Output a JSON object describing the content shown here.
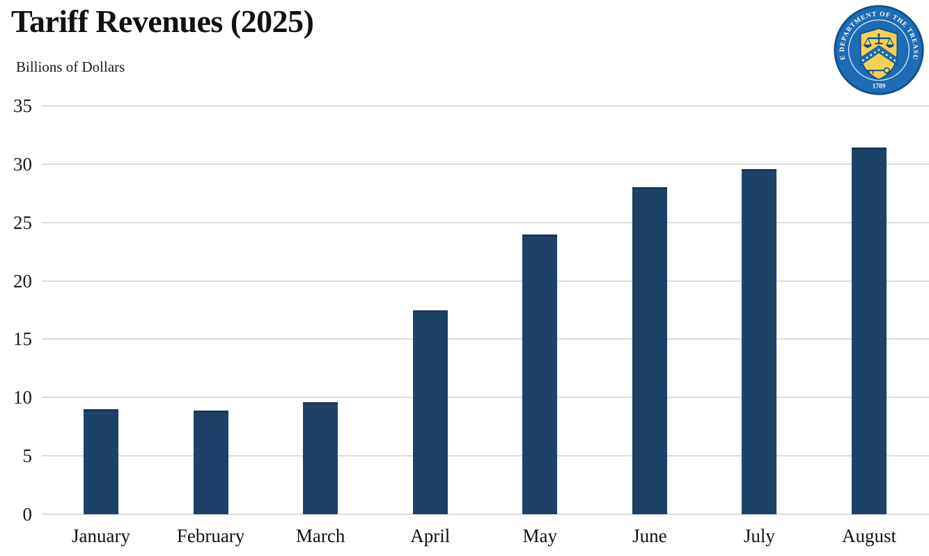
{
  "title": "Tariff Revenues (2025)",
  "subtitle": "Billions of Dollars",
  "seal": {
    "ring_text": "THE DEPARTMENT OF THE TREASURY",
    "founding_year": "1789",
    "blue": "#1d6cb5",
    "dark_blue": "#134f88",
    "gold": "#f2d155",
    "star_color": "#ffffff"
  },
  "chart_data": {
    "type": "bar",
    "title": "Tariff Revenues (2025)",
    "ylabel": "Billions of Dollars",
    "xlabel": "",
    "categories": [
      "January",
      "February",
      "March",
      "April",
      "May",
      "June",
      "July",
      "August"
    ],
    "values": [
      9.0,
      8.9,
      9.6,
      17.5,
      24.0,
      28.0,
      29.6,
      31.4
    ],
    "ylim": [
      0,
      35
    ],
    "yticks": [
      0,
      5,
      10,
      15,
      20,
      25,
      30,
      35
    ],
    "grid": true,
    "legend": false,
    "bar_color": "#1e4267",
    "gridline_color": "#dcdcdc",
    "axis_label_color": "#1a1a1a"
  }
}
